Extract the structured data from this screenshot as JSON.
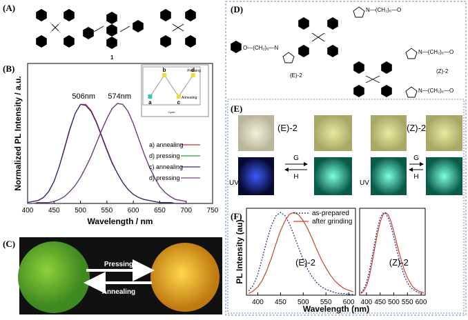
{
  "figure": {
    "labels": [
      "(A)",
      "(B)",
      "(C)",
      "(D)",
      "(E)",
      "(F)"
    ],
    "a": {
      "compound": "1"
    },
    "c": {
      "forward": "Pressing",
      "backward": "Annealing"
    },
    "d": {
      "chains": [
        "N—(CH₂)₆—O",
        "O—(CH₂)₆—N",
        "N—(CH₂)₆—O",
        "N—(CH₂)₆—O"
      ],
      "e_label": "(E)-2",
      "z_label": "(Z)-2"
    },
    "e": {
      "e_label": "(E)-2",
      "z_label": "(Z)-2",
      "forward": "G",
      "backward": "H",
      "uv": "UV"
    }
  },
  "chart_data": [
    {
      "type": "line",
      "xlabel": "Wavelength / nm",
      "ylabel": "Normalized PL Intensity / a.u.",
      "x": [
        400,
        410,
        420,
        430,
        440,
        450,
        460,
        470,
        480,
        490,
        500,
        510,
        520,
        530,
        540,
        550,
        560,
        570,
        580,
        590,
        600,
        610,
        620,
        630,
        640,
        650,
        660,
        670,
        680,
        690,
        700
      ],
      "xlim": [
        400,
        750
      ],
      "xticks": [
        400,
        450,
        500,
        550,
        600,
        650,
        700,
        750
      ],
      "ylim": [
        0,
        1.4
      ],
      "annotations": [
        {
          "text": "506nm",
          "x": 506,
          "y": 1.05
        },
        {
          "text": "574nm",
          "x": 574,
          "y": 1.05
        }
      ],
      "series": [
        {
          "name": "a)  annealing",
          "color": "#d0263a",
          "values": [
            0.01,
            0.02,
            0.03,
            0.06,
            0.12,
            0.22,
            0.37,
            0.55,
            0.74,
            0.9,
            0.99,
            0.99,
            0.93,
            0.82,
            0.68,
            0.54,
            0.41,
            0.3,
            0.21,
            0.14,
            0.09,
            0.06,
            0.04,
            0.03,
            0.02,
            0.01,
            0.01,
            0.01,
            0,
            0,
            0
          ]
        },
        {
          "name": "d)  pressing",
          "color": "#2a9a3a",
          "values": [
            0,
            0,
            0.01,
            0.01,
            0.01,
            0.02,
            0.04,
            0.07,
            0.12,
            0.18,
            0.26,
            0.36,
            0.47,
            0.6,
            0.73,
            0.85,
            0.95,
            1.0,
            0.99,
            0.92,
            0.8,
            0.65,
            0.5,
            0.37,
            0.26,
            0.17,
            0.11,
            0.07,
            0.04,
            0.03,
            0.02
          ]
        },
        {
          "name": "c)  annealing",
          "color": "#2a2f7a",
          "values": [
            0.01,
            0.02,
            0.03,
            0.06,
            0.12,
            0.22,
            0.37,
            0.56,
            0.75,
            0.9,
            0.99,
            0.98,
            0.92,
            0.81,
            0.67,
            0.53,
            0.4,
            0.3,
            0.21,
            0.14,
            0.09,
            0.06,
            0.04,
            0.03,
            0.02,
            0.01,
            0.01,
            0.01,
            0,
            0,
            0
          ]
        },
        {
          "name": "d)  pressing",
          "color": "#7a3a8a",
          "values": [
            0,
            0,
            0.01,
            0.01,
            0.01,
            0.02,
            0.04,
            0.07,
            0.12,
            0.18,
            0.26,
            0.36,
            0.47,
            0.6,
            0.73,
            0.85,
            0.95,
            1.0,
            0.99,
            0.92,
            0.8,
            0.65,
            0.5,
            0.37,
            0.26,
            0.17,
            0.11,
            0.07,
            0.04,
            0.03,
            0.02
          ]
        }
      ]
    },
    {
      "type": "inset",
      "xlabel": "Cycle",
      "x": [
        1,
        2,
        3,
        4
      ],
      "xlim": [
        0.5,
        4.5
      ],
      "values": [
        506,
        574,
        506,
        574
      ],
      "ylim": [
        480,
        600
      ],
      "point_labels": [
        "a",
        "b",
        "c",
        "d"
      ],
      "color": "#e8e030",
      "first_color": "#30c8b0",
      "line_color": "#999999",
      "annotations": [
        {
          "text": "Pressing",
          "x": 3.6,
          "y": 585
        },
        {
          "text": "Annealing",
          "x": 3.2,
          "y": 500
        }
      ]
    },
    {
      "type": "multi-line",
      "xlabel": "Wavelength (nm)",
      "ylabel": "PL Intensity (au)",
      "x": [
        380,
        390,
        400,
        410,
        420,
        430,
        440,
        450,
        460,
        470,
        480,
        490,
        500,
        510,
        520,
        530,
        540,
        550,
        560,
        570,
        580,
        590,
        600,
        610
      ],
      "xlim": [
        375,
        615
      ],
      "xticks": [
        400,
        450,
        500,
        550,
        600
      ],
      "ylim": [
        0,
        1.05
      ],
      "series": [
        {
          "name": "as-prepared",
          "color": "#1a237e",
          "dashed": true
        },
        {
          "name": "after grinding",
          "color": "#d0402a",
          "dashed": false
        }
      ],
      "panels": [
        {
          "label": "(E)-2",
          "values": [
            [
              0.05,
              0.12,
              0.25,
              0.45,
              0.66,
              0.84,
              0.96,
              1.0,
              0.96,
              0.86,
              0.72,
              0.57,
              0.43,
              0.31,
              0.22,
              0.15,
              0.1,
              0.07,
              0.05,
              0.03,
              0.02,
              0.02,
              0.01,
              0.01
            ],
            [
              0.02,
              0.05,
              0.1,
              0.18,
              0.3,
              0.45,
              0.62,
              0.78,
              0.9,
              0.98,
              1.0,
              0.97,
              0.9,
              0.8,
              0.68,
              0.55,
              0.43,
              0.33,
              0.24,
              0.17,
              0.12,
              0.08,
              0.06,
              0.04
            ]
          ]
        },
        {
          "label": "(Z)-2",
          "values": [
            [
              0.03,
              0.07,
              0.15,
              0.28,
              0.45,
              0.63,
              0.8,
              0.93,
              0.99,
              0.99,
              0.93,
              0.83,
              0.7,
              0.56,
              0.43,
              0.32,
              0.22,
              0.15,
              0.1,
              0.07,
              0.05,
              0.03,
              0.02,
              0.02
            ],
            [
              0.02,
              0.05,
              0.11,
              0.22,
              0.38,
              0.56,
              0.74,
              0.88,
              0.97,
              1.0,
              0.97,
              0.89,
              0.77,
              0.64,
              0.51,
              0.39,
              0.29,
              0.21,
              0.15,
              0.1,
              0.07,
              0.05,
              0.04,
              0.03
            ]
          ]
        }
      ]
    }
  ]
}
